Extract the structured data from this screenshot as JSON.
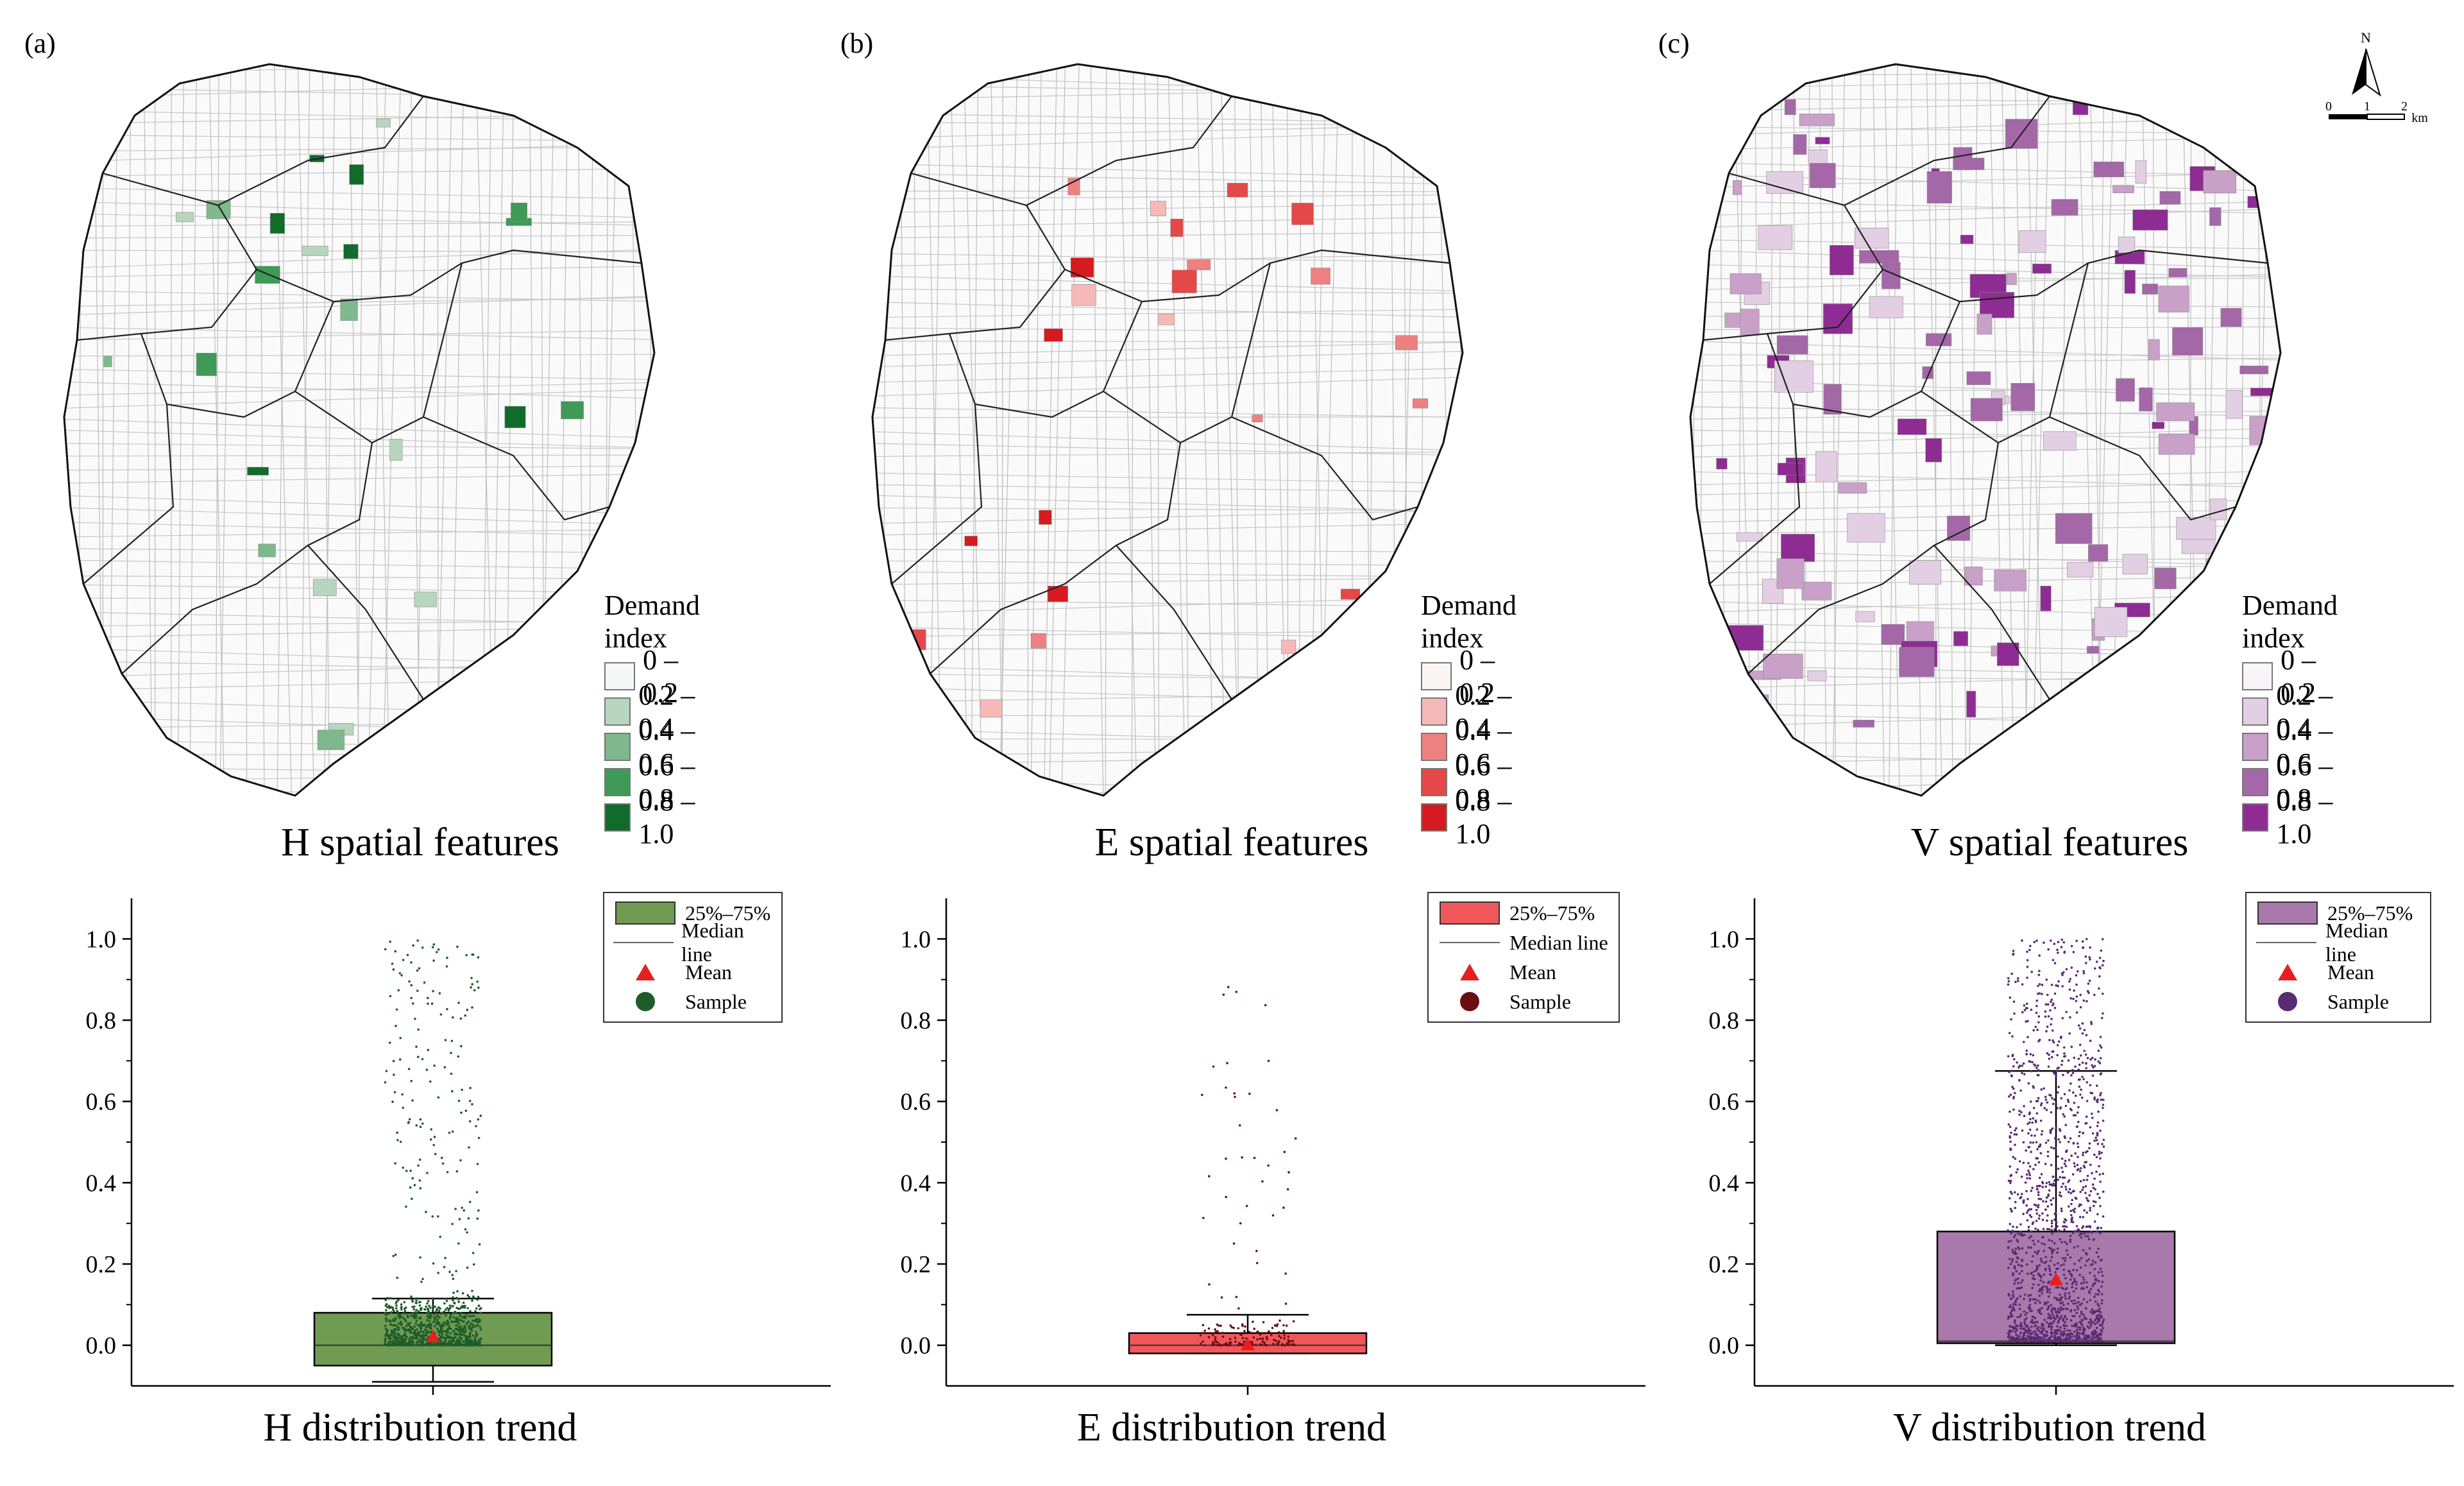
{
  "panels": [
    {
      "id": "H",
      "panel_label": "(a)",
      "map_caption": "H spatial features",
      "box_caption": "H distribution trend",
      "accent": "#1f7a2e",
      "legend_title": "Demand index",
      "legend_classes": [
        {
          "label": "0 – 0.2",
          "color": "#f3f8f6"
        },
        {
          "label": "0.2 – 0.4",
          "color": "#b7d6bd"
        },
        {
          "label": "0.4 – 0.6",
          "color": "#7fb88c"
        },
        {
          "label": "0.6 – 0.8",
          "color": "#3f9a57"
        },
        {
          "label": "0.8 – 1.0",
          "color": "#116b2a"
        }
      ],
      "box_fill": "#6f9b52",
      "sample_color": "#1e5c2a"
    },
    {
      "id": "E",
      "panel_label": "(b)",
      "map_caption": "E spatial features",
      "box_caption": "E distribution trend",
      "accent": "#e0262a",
      "legend_title": "Demand index",
      "legend_classes": [
        {
          "label": "0 – 0.2",
          "color": "#fbf5f5"
        },
        {
          "label": "0.2 – 0.4",
          "color": "#f7b8b8"
        },
        {
          "label": "0.4 – 0.6",
          "color": "#ef8080"
        },
        {
          "label": "0.6 – 0.8",
          "color": "#e54848"
        },
        {
          "label": "0.8 – 1.0",
          "color": "#d71a1f"
        }
      ],
      "box_fill": "#f0575a",
      "sample_color": "#6b0e12"
    },
    {
      "id": "V",
      "panel_label": "(c)",
      "map_caption": "V spatial features",
      "box_caption": "V distribution trend",
      "accent": "#8a2a8e",
      "legend_title": "Demand index",
      "legend_classes": [
        {
          "label": "0 – 0.2",
          "color": "#f8f4f8"
        },
        {
          "label": "0.2 – 0.4",
          "color": "#e3cfe3"
        },
        {
          "label": "0.4 – 0.6",
          "color": "#c8a0c8"
        },
        {
          "label": "0.6 – 0.8",
          "color": "#a468a8"
        },
        {
          "label": "0.8 – 1.0",
          "color": "#8e2c93"
        }
      ],
      "box_fill": "#a879aa",
      "sample_color": "#5a2a72"
    }
  ],
  "box_legend": {
    "iqr": "25%–75%",
    "median": "Median line",
    "mean": "Mean",
    "sample": "Sample"
  },
  "mean_color": "#e81f1f",
  "compass": {
    "north": "N",
    "scale_ticks": [
      "0",
      "1",
      "2"
    ],
    "scale_unit": "km"
  },
  "chart_data": [
    {
      "type": "box",
      "title": "H distribution trend",
      "ylim": [
        -0.1,
        1.1
      ],
      "yticks": [
        0.0,
        0.2,
        0.4,
        0.6,
        0.8,
        1.0
      ],
      "ytick_labels": [
        "0.0",
        "0.2",
        "0.4",
        "0.6",
        "0.8",
        "1.0"
      ],
      "q1": -0.05,
      "median": 0.0,
      "q3": 0.08,
      "whisker_low": -0.09,
      "whisker_high": 0.115,
      "mean": 0.02,
      "sample_max": 1.0,
      "dense_until": 0.1
    },
    {
      "type": "box",
      "title": "E distribution trend",
      "ylim": [
        -0.1,
        1.1
      ],
      "yticks": [
        0.0,
        0.2,
        0.4,
        0.6,
        0.8,
        1.0
      ],
      "ytick_labels": [
        "0.0",
        "0.2",
        "0.4",
        "0.6",
        "0.8",
        "1.0"
      ],
      "q1": -0.02,
      "median": 0.0,
      "q3": 0.03,
      "whisker_low": -0.02,
      "whisker_high": 0.075,
      "mean": 0.0,
      "sample_max": 0.92,
      "dense_until": 0.05
    },
    {
      "type": "box",
      "title": "V distribution trend",
      "ylim": [
        -0.1,
        1.1
      ],
      "yticks": [
        0.0,
        0.2,
        0.4,
        0.6,
        0.8,
        1.0
      ],
      "ytick_labels": [
        "0.0",
        "0.2",
        "0.4",
        "0.6",
        "0.8",
        "1.0"
      ],
      "q1": 0.005,
      "median": 0.01,
      "q3": 0.28,
      "whisker_low": 0.0,
      "whisker_high": 0.675,
      "mean": 0.16,
      "sample_max": 1.0,
      "dense_until": 0.6
    }
  ]
}
